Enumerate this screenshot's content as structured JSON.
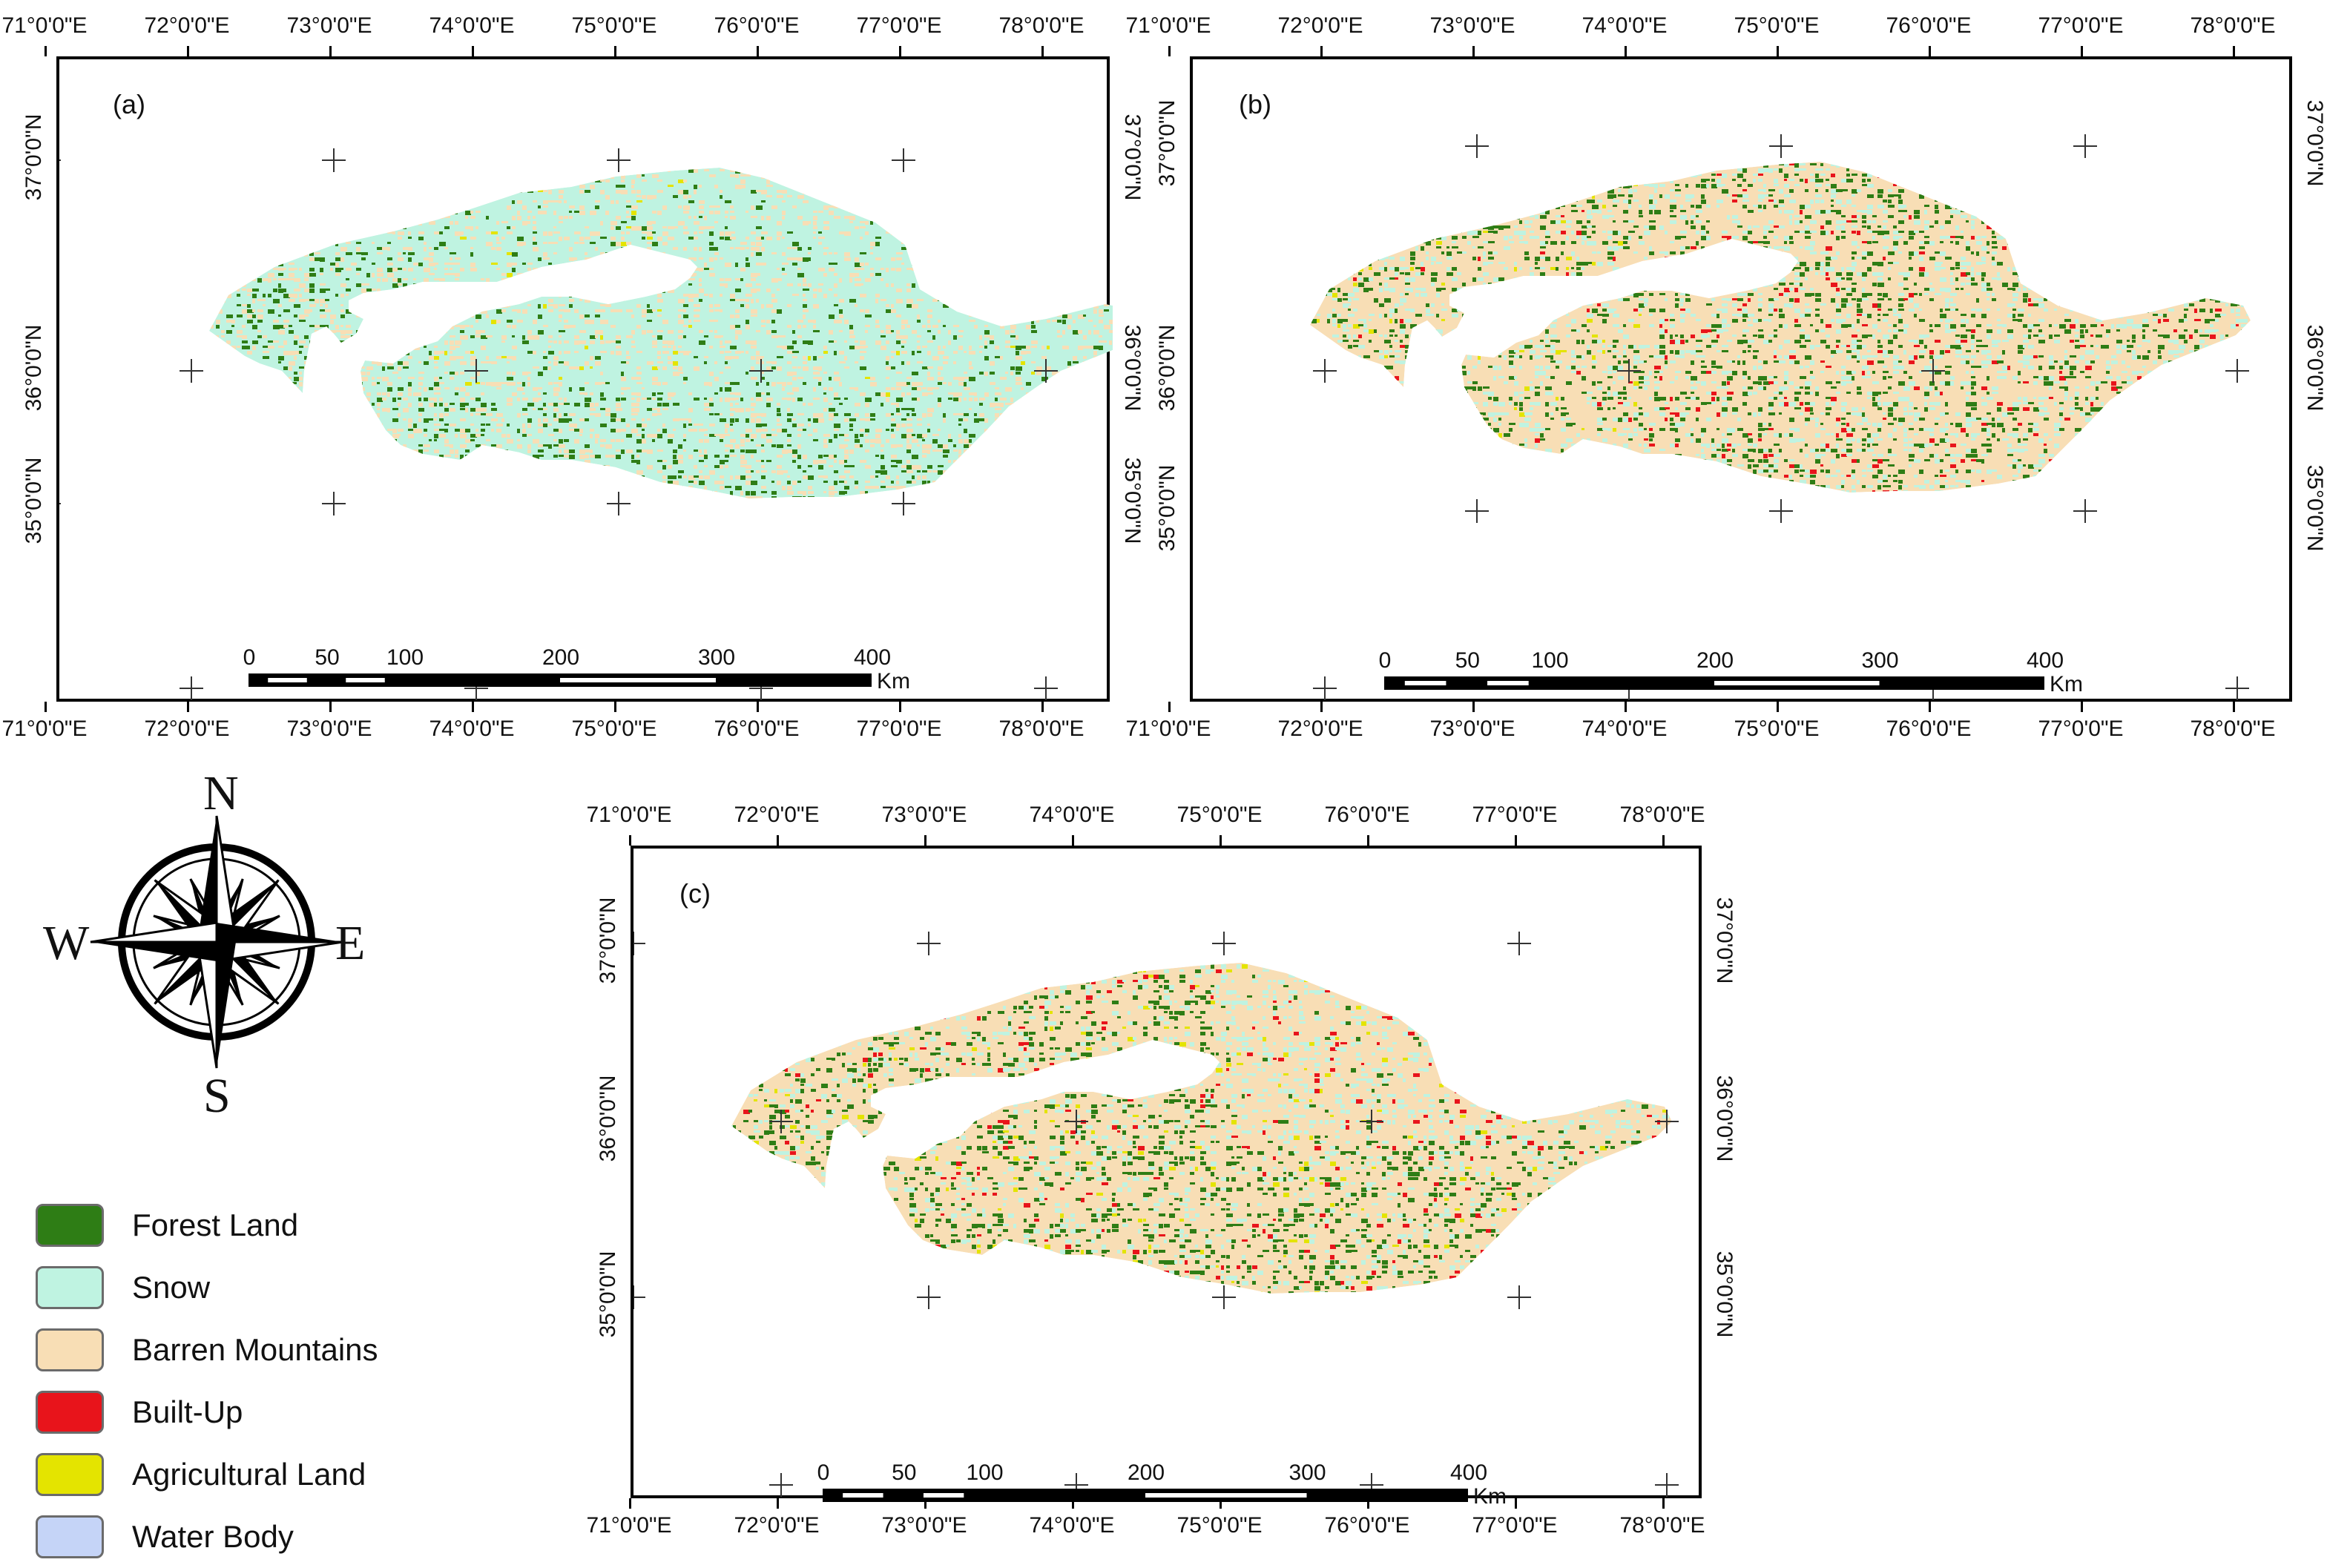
{
  "panels": [
    {
      "label": "(a)",
      "lon_labels": [
        "71°0'0\"E",
        "72°0'0\"E",
        "73°0'0\"E",
        "74°0'0\"E",
        "75°0'0\"E",
        "76°0'0\"E",
        "77°0'0\"E",
        "78°0'0\"E"
      ],
      "lat_labels": [
        "37°0'0\"N",
        "36°0'0\"N",
        "35°0'0\"N"
      ],
      "scalebar": {
        "ticks": [
          "0",
          "50",
          "100",
          "200",
          "300",
          "400"
        ],
        "unit": "Km"
      }
    },
    {
      "label": "(b)",
      "lon_labels": [
        "71°0'0\"E",
        "72°0'0\"E",
        "73°0'0\"E",
        "74°0'0\"E",
        "75°0'0\"E",
        "76°0'0\"E",
        "77°0'0\"E",
        "78°0'0\"E"
      ],
      "lat_labels": [
        "37°0'0\"N",
        "36°0'0\"N",
        "35°0'0\"N"
      ],
      "scalebar": {
        "ticks": [
          "0",
          "50",
          "100",
          "200",
          "300",
          "400"
        ],
        "unit": "Km"
      }
    },
    {
      "label": "(c)",
      "lon_labels": [
        "71°0'0\"E",
        "72°0'0\"E",
        "73°0'0\"E",
        "74°0'0\"E",
        "75°0'0\"E",
        "76°0'0\"E",
        "77°0'0\"E",
        "78°0'0\"E"
      ],
      "lat_labels": [
        "37°0'0\"N",
        "36°0'0\"N",
        "35°0'0\"N"
      ],
      "scalebar": {
        "ticks": [
          "0",
          "50",
          "100",
          "200",
          "300",
          "400"
        ],
        "unit": "Km"
      }
    }
  ],
  "compass": {
    "north": "N",
    "south": "S",
    "east": "E",
    "west": "W"
  },
  "legend": [
    {
      "label": "Forest Land",
      "color": "#2e7d15"
    },
    {
      "label": "Snow",
      "color": "#bff3e1"
    },
    {
      "label": "Barren Mountains",
      "color": "#f8deb5"
    },
    {
      "label": "Built-Up",
      "color": "#e8141b"
    },
    {
      "label": "Agricultural Land",
      "color": "#e4e400"
    },
    {
      "label": "Water Body",
      "color": "#c5d4f7"
    }
  ]
}
